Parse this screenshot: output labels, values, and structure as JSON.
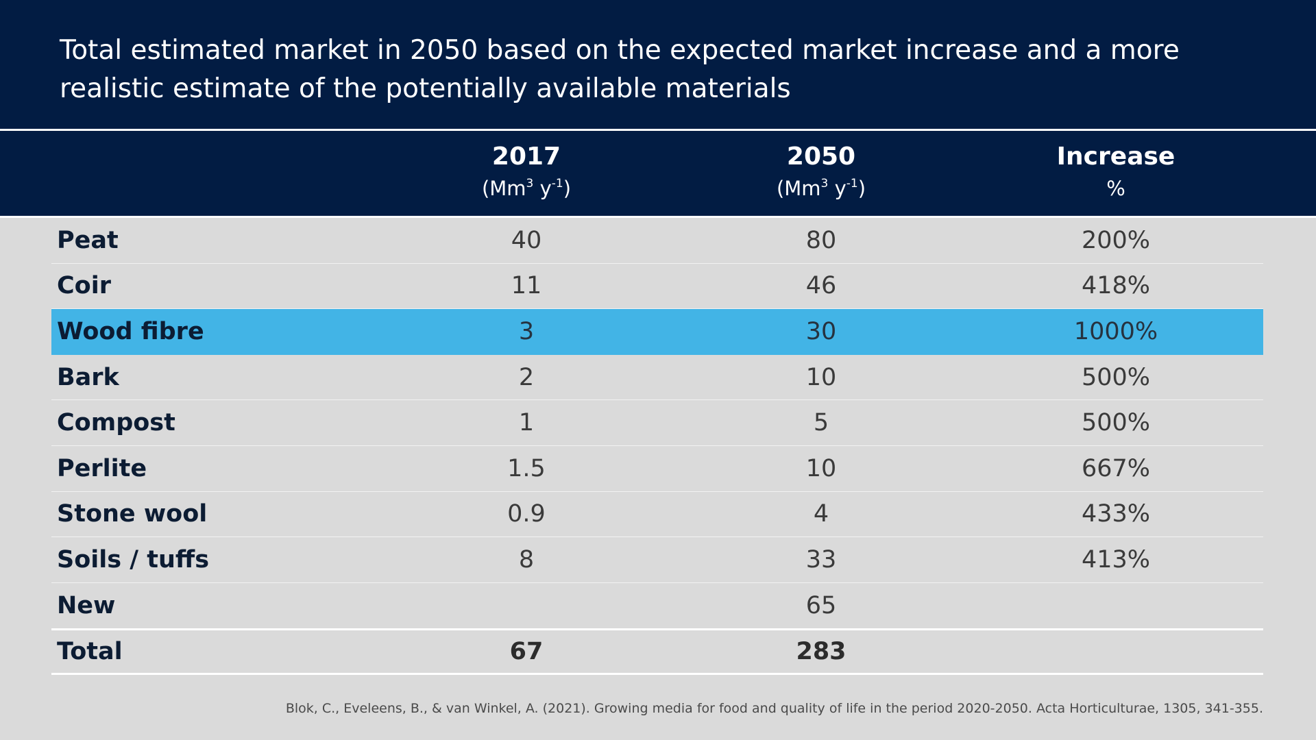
{
  "title": "Total estimated market in 2050 based on the expected market increase and a more realistic estimate of the potentially available materials",
  "columns": [
    {
      "main": "2017",
      "unit_base": "(Mm",
      "unit_sup1": "3",
      "unit_mid": " y",
      "unit_sup2": "-1",
      "unit_end": ")"
    },
    {
      "main": "2050",
      "unit_base": "(Mm",
      "unit_sup1": "3",
      "unit_mid": " y",
      "unit_sup2": "-1",
      "unit_end": ")"
    },
    {
      "main": "Increase",
      "unit": "%"
    }
  ],
  "rows": [
    {
      "label": "Peat",
      "v2017": "40",
      "v2050": "80",
      "increase": "200%"
    },
    {
      "label": "Coir",
      "v2017": "11",
      "v2050": "46",
      "increase": "418%"
    },
    {
      "label": "Wood fibre",
      "v2017": "3",
      "v2050": "30",
      "increase": "1000%"
    },
    {
      "label": "Bark",
      "v2017": "2",
      "v2050": "10",
      "increase": "500%"
    },
    {
      "label": "Compost",
      "v2017": "1",
      "v2050": "5",
      "increase": "500%"
    },
    {
      "label": "Perlite",
      "v2017": "1.5",
      "v2050": "10",
      "increase": "667%"
    },
    {
      "label": "Stone wool",
      "v2017": "0.9",
      "v2050": "4",
      "increase": "433%"
    },
    {
      "label": "Soils / tuffs",
      "v2017": "8",
      "v2050": "33",
      "increase": "413%"
    },
    {
      "label": "New",
      "v2017": "",
      "v2050": "65",
      "increase": ""
    }
  ],
  "total": {
    "label": "Total",
    "v2017": "67",
    "v2050": "283",
    "increase": ""
  },
  "citation": "Blok, C., Eveleens, B., & van Winkel, A. (2021). Growing media for food and quality of life in the period 2020-2050. Acta Horticulturae, 1305, 341-355.",
  "colors": {
    "navy": "#021c43",
    "highlight": "#42b4e6",
    "background": "#dadada"
  }
}
